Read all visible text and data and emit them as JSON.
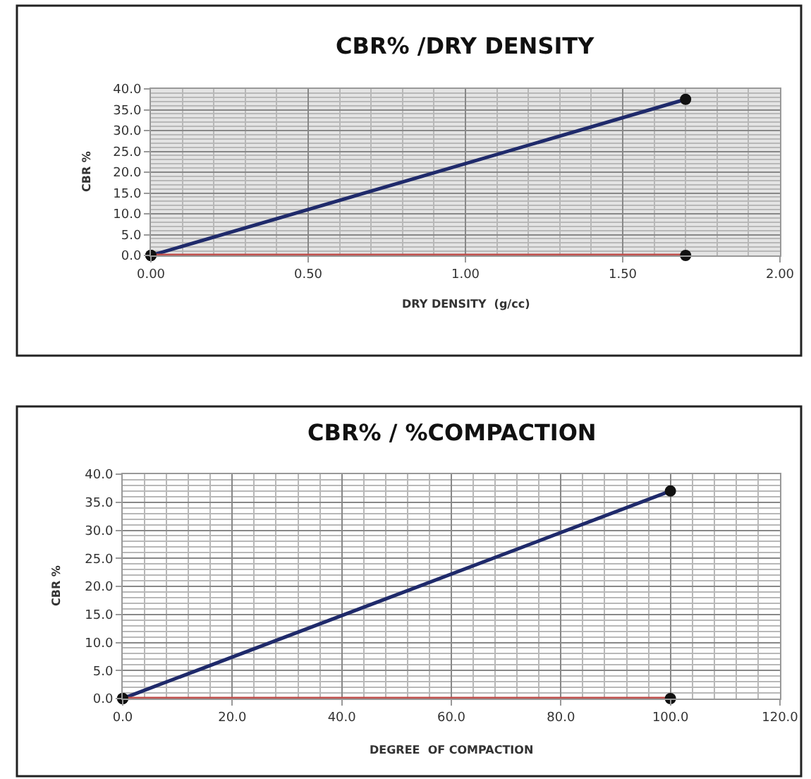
{
  "chart_data": [
    {
      "type": "line",
      "title": "CBR% /DRY DENSITY",
      "xlabel": "DRY DENSITY  (g/cc)",
      "ylabel": "CBR %",
      "marker": "circle",
      "grid": true,
      "series": [
        {
          "color": "#1f2a6b",
          "x": [
            0.0,
            1.7
          ],
          "values": [
            0.0,
            37.5
          ]
        },
        {
          "color": "#c0504d",
          "x": [
            0.0,
            1.7
          ],
          "values": [
            0.0,
            0.0
          ]
        }
      ],
      "xlim": [
        0,
        2
      ],
      "ylim": [
        0,
        40
      ],
      "xticks": [
        {
          "value": 0,
          "label": "0.00"
        },
        {
          "value": 0.5,
          "label": "0.50"
        },
        {
          "value": 1,
          "label": "1.00"
        },
        {
          "value": 1.5,
          "label": "1.50"
        },
        {
          "value": 2,
          "label": "2.00"
        }
      ],
      "yticks": [
        {
          "value": 0,
          "label": "0.0"
        },
        {
          "value": 5,
          "label": "5.0"
        },
        {
          "value": 10,
          "label": "10.0"
        },
        {
          "value": 15,
          "label": "15.0"
        },
        {
          "value": 20,
          "label": "20.0"
        },
        {
          "value": 25,
          "label": "25.0"
        },
        {
          "value": 30,
          "label": "30.0"
        },
        {
          "value": 35,
          "label": "35.0"
        },
        {
          "value": 40,
          "label": "40.0"
        }
      ]
    },
    {
      "type": "line",
      "title": "CBR% / %COMPACTION",
      "xlabel": "DEGREE  OF COMPACTION",
      "ylabel": "CBR %",
      "marker": "circle",
      "grid": true,
      "series": [
        {
          "color": "#1f2a6b",
          "x": [
            0.0,
            100.0
          ],
          "values": [
            0.0,
            37.0
          ]
        },
        {
          "color": "#c0504d",
          "x": [
            0.0,
            100.0
          ],
          "values": [
            0.0,
            0.0
          ]
        }
      ],
      "xlim": [
        0,
        120
      ],
      "ylim": [
        0,
        40
      ],
      "xticks": [
        {
          "value": 0,
          "label": "0.0"
        },
        {
          "value": 20,
          "label": "20.0"
        },
        {
          "value": 40,
          "label": "40.0"
        },
        {
          "value": 60,
          "label": "60.0"
        },
        {
          "value": 80,
          "label": "80.0"
        },
        {
          "value": 100,
          "label": "100.0"
        },
        {
          "value": 120,
          "label": "120.0"
        }
      ],
      "yticks": [
        {
          "value": 0,
          "label": "0.0"
        },
        {
          "value": 5,
          "label": "5.0"
        },
        {
          "value": 10,
          "label": "10.0"
        },
        {
          "value": 15,
          "label": "15.0"
        },
        {
          "value": 20,
          "label": "20.0"
        },
        {
          "value": 25,
          "label": "25.0"
        },
        {
          "value": 30,
          "label": "30.0"
        },
        {
          "value": 35,
          "label": "35.0"
        },
        {
          "value": 40,
          "label": "40.0"
        }
      ]
    }
  ]
}
